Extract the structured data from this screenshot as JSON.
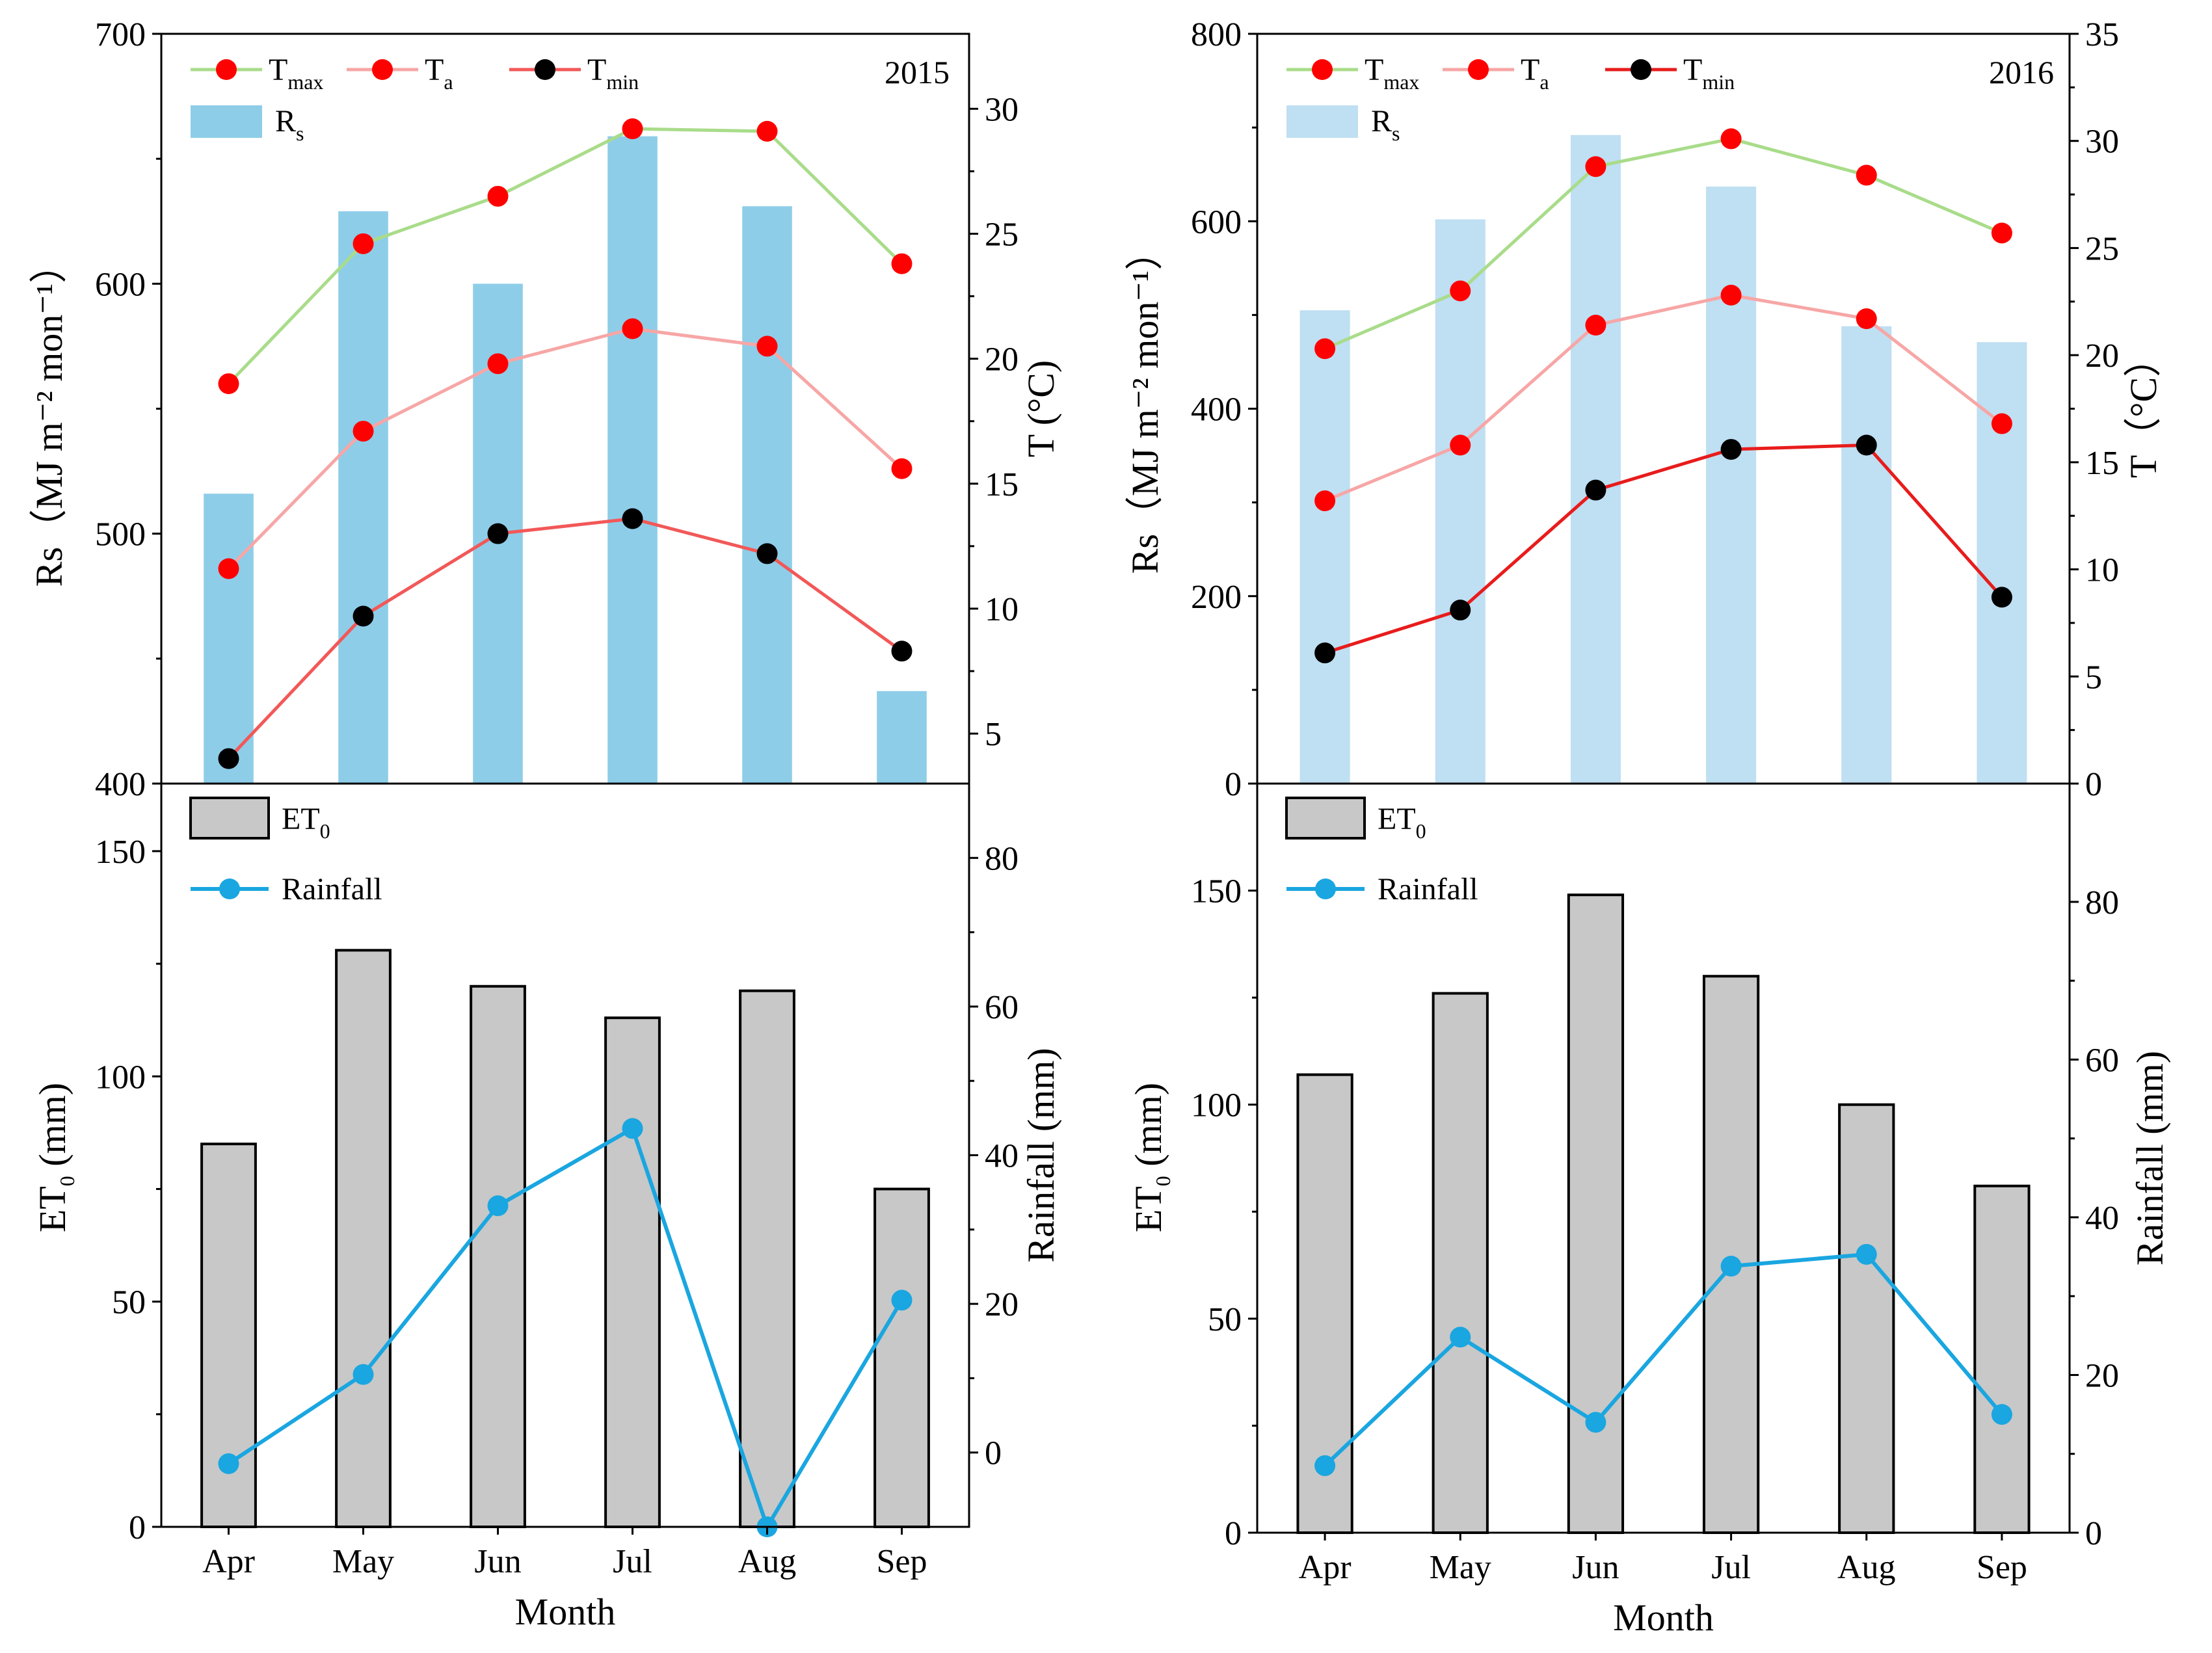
{
  "chart_data": [
    {
      "id": "p2015top",
      "type": "bar+line",
      "year_label": "2015",
      "categories": [
        "Apr",
        "May",
        "Jun",
        "Jul",
        "Aug",
        "Sep"
      ],
      "left_axis": {
        "label": "Rs（MJ m⁻² mon⁻¹）",
        "min": 400,
        "max": 700,
        "ticks": [
          400,
          500,
          600,
          700
        ]
      },
      "right_axis": {
        "label": "T (°C)",
        "min": 3,
        "max": 33,
        "ticks": [
          5,
          10,
          15,
          20,
          25,
          30
        ]
      },
      "bars": {
        "name": "Rs",
        "color": "#8ecde8",
        "values": [
          516,
          629,
          600,
          659,
          631,
          437
        ]
      },
      "lines": [
        {
          "name": "Tmax",
          "base": "T",
          "sub": "max",
          "line_color": "#a9dc8a",
          "marker_color": "#ff0000",
          "values": [
            19.0,
            24.6,
            26.5,
            29.2,
            29.1,
            23.8
          ]
        },
        {
          "name": "Ta",
          "base": "T",
          "sub": "a",
          "line_color": "#f7a6a6",
          "marker_color": "#ff0000",
          "values": [
            11.6,
            17.1,
            19.8,
            21.2,
            20.5,
            15.6
          ]
        },
        {
          "name": "Tmin",
          "base": "T",
          "sub": "min",
          "line_color": "#f25858",
          "marker_color": "#000000",
          "values": [
            4.0,
            9.7,
            13.0,
            13.6,
            12.2,
            8.3
          ]
        }
      ]
    },
    {
      "id": "p2015bot",
      "type": "bar+line",
      "xlabel": "Month",
      "categories": [
        "Apr",
        "May",
        "Jun",
        "Jul",
        "Aug",
        "Sep"
      ],
      "left_axis": {
        "label": "ET0 (mm)",
        "base": "ET",
        "sub": "0",
        "suffix": " (mm)",
        "min": 0,
        "max": 165,
        "ticks": [
          0,
          50,
          100,
          150
        ]
      },
      "right_axis": {
        "label": "Rainfall (mm)",
        "min": -10,
        "max": 90,
        "ticks": [
          0,
          20,
          40,
          60,
          80
        ]
      },
      "bars": {
        "name": "ET0",
        "base": "ET",
        "sub": "0",
        "color": "#c8c8c8",
        "values": [
          85,
          128,
          120,
          113,
          119,
          75
        ]
      },
      "lines": [
        {
          "name": "Rainfall",
          "line_color": "#1aa6e0",
          "marker_color": "#1aa6e0",
          "values": [
            -1.5,
            10.5,
            33.2,
            43.6,
            -10.0,
            20.5
          ]
        }
      ]
    },
    {
      "id": "p2016top",
      "type": "bar+line",
      "year_label": "2016",
      "categories": [
        "Apr",
        "May",
        "Jun",
        "Jul",
        "Aug",
        "Sep"
      ],
      "left_axis": {
        "label": "Rs（MJ m⁻² mon⁻¹）",
        "min": 0,
        "max": 800,
        "ticks": [
          0,
          200,
          400,
          600,
          800
        ]
      },
      "right_axis": {
        "label": "T（°C）",
        "min": 0,
        "max": 35,
        "ticks": [
          0,
          5,
          10,
          15,
          20,
          25,
          30,
          35
        ]
      },
      "bars": {
        "name": "Rs",
        "color": "#bfdff2",
        "values": [
          505,
          602,
          692,
          637,
          488,
          471
        ]
      },
      "lines": [
        {
          "name": "Tmax",
          "base": "T",
          "sub": "max",
          "line_color": "#a9dc8a",
          "marker_color": "#ff0000",
          "values": [
            20.3,
            23.0,
            28.8,
            30.1,
            28.4,
            25.7
          ]
        },
        {
          "name": "Ta",
          "base": "T",
          "sub": "a",
          "line_color": "#f7a6a6",
          "marker_color": "#ff0000",
          "values": [
            13.2,
            15.8,
            21.4,
            22.8,
            21.7,
            16.8
          ]
        },
        {
          "name": "Tmin",
          "base": "T",
          "sub": "min",
          "line_color": "#e81c1c",
          "marker_color": "#000000",
          "values": [
            6.1,
            8.1,
            13.7,
            15.6,
            15.8,
            8.7
          ]
        }
      ]
    },
    {
      "id": "p2016bot",
      "type": "bar+line",
      "xlabel": "Month",
      "categories": [
        "Apr",
        "May",
        "Jun",
        "Jul",
        "Aug",
        "Sep"
      ],
      "left_axis": {
        "label": "ET0 (mm)",
        "base": "ET",
        "sub": "0",
        "suffix": " (mm)",
        "min": 0,
        "max": 175,
        "ticks": [
          0,
          50,
          100,
          150
        ]
      },
      "right_axis": {
        "label": "Rainfall (mm)",
        "min": 0,
        "max": 95,
        "ticks": [
          0,
          20,
          40,
          60,
          80
        ]
      },
      "bars": {
        "name": "ET0",
        "base": "ET",
        "sub": "0",
        "color": "#c8c8c8",
        "values": [
          107,
          126,
          149,
          130,
          100,
          81
        ]
      },
      "lines": [
        {
          "name": "Rainfall",
          "line_color": "#1aa6e0",
          "marker_color": "#1aa6e0",
          "values": [
            8.5,
            24.8,
            14.0,
            33.8,
            35.3,
            15.0
          ]
        }
      ]
    }
  ]
}
